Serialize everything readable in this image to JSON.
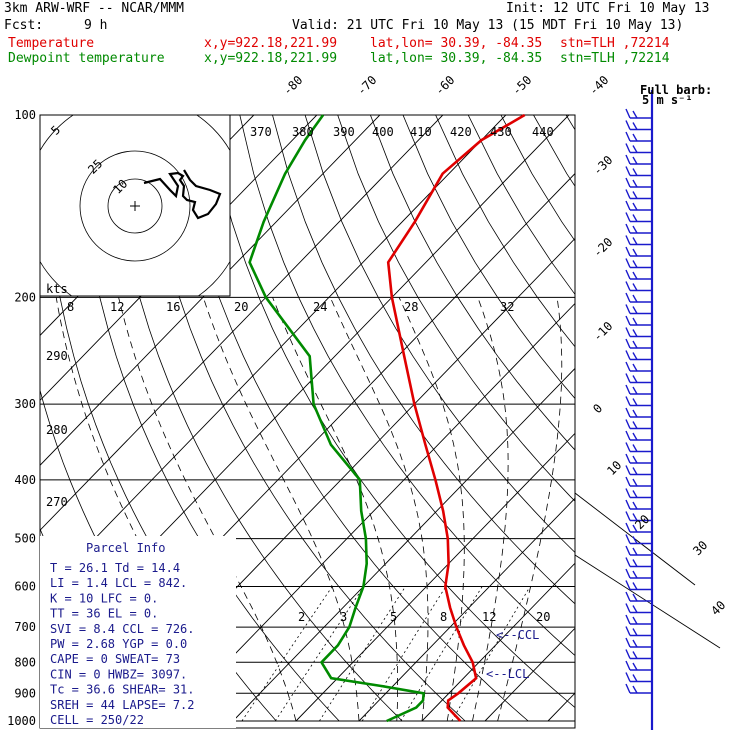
{
  "header": {
    "model": "3km ARW-WRF -- NCAR/MMM",
    "init": "Init: 12 UTC Fri 10 May 13",
    "fcst_label": "Fcst:",
    "fcst_value": "9 h",
    "valid": "Valid: 21 UTC Fri 10 May 13 (15 MDT Fri 10 May 13)"
  },
  "legend": [
    {
      "name": "Temperature",
      "xy": "x,y=922.18,221.99",
      "latlon": "lat,lon= 30.39, -84.35",
      "stn": "stn=TLH ,72214",
      "color": "#e00000"
    },
    {
      "name": "Dewpoint temperature",
      "xy": "x,y=922.18,221.99",
      "latlon": "lat,lon= 30.39, -84.35",
      "stn": "stn=TLH ,72214",
      "color": "#008a00"
    }
  ],
  "barb_key": {
    "line1": "Full barb:",
    "line2": "5 m s⁻¹"
  },
  "hodograph": {
    "kts_label": "kts",
    "ring_labels": [
      "5",
      "25",
      "10"
    ],
    "speed_ticks": [
      "8",
      "12",
      "16",
      "20",
      "24",
      "28",
      "32"
    ]
  },
  "adiabat_labels": [
    "370",
    "380",
    "390",
    "400",
    "410",
    "420",
    "430",
    "440"
  ],
  "theta_labels": [
    "290",
    "280",
    "270"
  ],
  "mixing_labels": [
    "2",
    "3",
    "5",
    "8",
    "12",
    "20"
  ],
  "temp_axis_labels": [
    "-80",
    "-70",
    "-60",
    "-50",
    "-40",
    "-30",
    "-20",
    "-10",
    "0",
    "10",
    "20",
    "30",
    "40"
  ],
  "parcel_info": {
    "title": "Parcel Info",
    "rows": [
      "T   =   26.1  Td =  14.4",
      "LI  =    1.4  LCL =  842.",
      "K   =     10  LFC =    0.",
      "TT  =     36  EL  =    0.",
      "SVI =    8.4  CCL =  726.",
      "PW  =   2.68  YGP =   0.0",
      "CAPE =     0  SWEAT=   73",
      "CIN  =     0  HWBZ= 3097.",
      "Tc  =   36.6  SHEAR=  31.",
      "SREH =    44  LAPSE=  7.2",
      "CELL = 250/22"
    ]
  },
  "annotations": {
    "ccl": "<--CCL",
    "lcl": "<--LCL"
  },
  "chart_data": {
    "type": "line",
    "title": "3km ARW-WRF -- NCAR/MMM",
    "xlabel": "",
    "ylabel": "",
    "y_scale": "log-pressure",
    "ylim": [
      1000,
      100
    ],
    "pressure_levels": [
      100,
      200,
      300,
      400,
      500,
      600,
      700,
      800,
      900,
      1000
    ],
    "grid": true,
    "series": [
      {
        "name": "Temperature",
        "color": "#e00000",
        "points": [
          [
            1000,
            26.1
          ],
          [
            950,
            22
          ],
          [
            925,
            21
          ],
          [
            900,
            21.5
          ],
          [
            850,
            22
          ],
          [
            800,
            19
          ],
          [
            750,
            15
          ],
          [
            700,
            11
          ],
          [
            650,
            7
          ],
          [
            600,
            3
          ],
          [
            550,
            0
          ],
          [
            500,
            -4
          ],
          [
            450,
            -9
          ],
          [
            400,
            -15
          ],
          [
            350,
            -22
          ],
          [
            300,
            -30
          ],
          [
            250,
            -39
          ],
          [
            200,
            -50
          ],
          [
            175,
            -56
          ],
          [
            150,
            -58
          ],
          [
            125,
            -61
          ],
          [
            110,
            -60
          ],
          [
            100,
            -57
          ]
        ]
      },
      {
        "name": "Dewpoint temperature",
        "color": "#008a00",
        "points": [
          [
            1000,
            14.4
          ],
          [
            950,
            17
          ],
          [
            925,
            17
          ],
          [
            900,
            16
          ],
          [
            875,
            8
          ],
          [
            850,
            -1
          ],
          [
            800,
            -5
          ],
          [
            750,
            -5
          ],
          [
            700,
            -6
          ],
          [
            650,
            -8
          ],
          [
            600,
            -10
          ],
          [
            550,
            -13
          ],
          [
            500,
            -17
          ],
          [
            450,
            -22
          ],
          [
            400,
            -27
          ],
          [
            350,
            -37
          ],
          [
            300,
            -46
          ],
          [
            250,
            -54
          ],
          [
            200,
            -70
          ],
          [
            175,
            -78
          ],
          [
            150,
            -82
          ],
          [
            125,
            -86
          ],
          [
            110,
            -88
          ],
          [
            100,
            -89
          ]
        ]
      }
    ]
  },
  "colors": {
    "barbs": "#1a1acc",
    "parcel": "#1a1a8c"
  }
}
